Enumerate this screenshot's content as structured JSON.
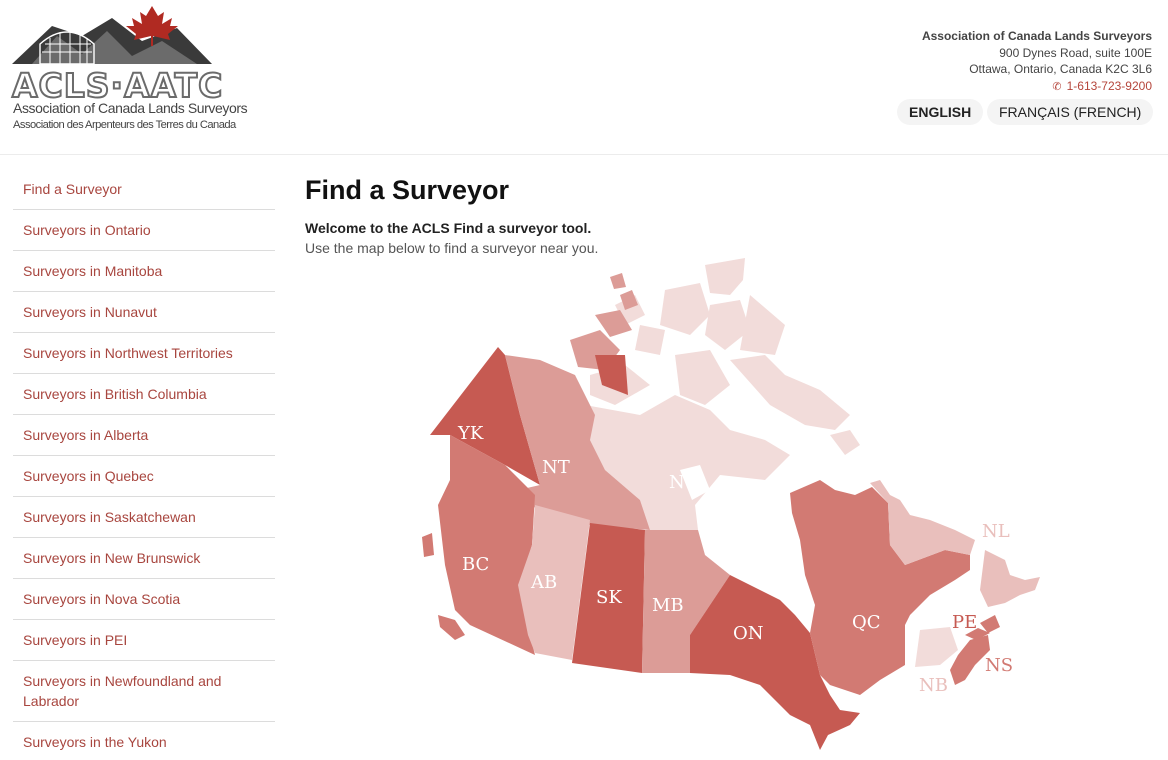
{
  "header": {
    "logo": {
      "wordmark": "ACLS·AATC",
      "name_en": "Association of Canada Lands Surveyors",
      "name_fr": "Association des Arpenteurs des Terres du Canada"
    },
    "contact": {
      "org": "Association of Canada Lands Surveyors",
      "address1": "900 Dynes Road, suite 100E",
      "address2": "Ottawa, Ontario, Canada K2C 3L6",
      "phone": "1-613-723-9200"
    },
    "languages": [
      "ENGLISH",
      "FRANÇAIS (FRENCH)"
    ]
  },
  "sidebar": {
    "items": [
      {
        "label": "Find a Surveyor"
      },
      {
        "label": "Surveyors in Ontario"
      },
      {
        "label": "Surveyors in Manitoba"
      },
      {
        "label": "Surveyors in Nunavut"
      },
      {
        "label": "Surveyors in Northwest Territories"
      },
      {
        "label": "Surveyors in British Columbia"
      },
      {
        "label": "Surveyors in Alberta"
      },
      {
        "label": "Surveyors in Quebec"
      },
      {
        "label": "Surveyors in Saskatchewan"
      },
      {
        "label": "Surveyors in New Brunswick"
      },
      {
        "label": "Surveyors in Nova Scotia"
      },
      {
        "label": "Surveyors in PEI"
      },
      {
        "label": "Surveyors in Newfoundland and Labrador"
      },
      {
        "label": "Surveyors in the Yukon"
      }
    ]
  },
  "main": {
    "title": "Find a Surveyor",
    "intro_strong": "Welcome to the ACLS Find a surveyor tool.",
    "intro_text": "Use the map below to find a surveyor near you."
  },
  "map": {
    "provinces": {
      "yk": "YK",
      "nt": "NT",
      "nu": "NU",
      "bc": "BC",
      "ab": "AB",
      "sk": "SK",
      "mb": "MB",
      "on": "ON",
      "qc": "QC",
      "nl": "NL",
      "pe": "PE",
      "ns": "NS",
      "nb": "NB"
    }
  },
  "colors": {
    "accent": "#a8463f",
    "dark_region": "#c65a52",
    "mid_region": "#d27a73",
    "light_region": "#dc9c97",
    "pale_region": "#e9bfbc",
    "palest_region": "#f2dcda"
  }
}
